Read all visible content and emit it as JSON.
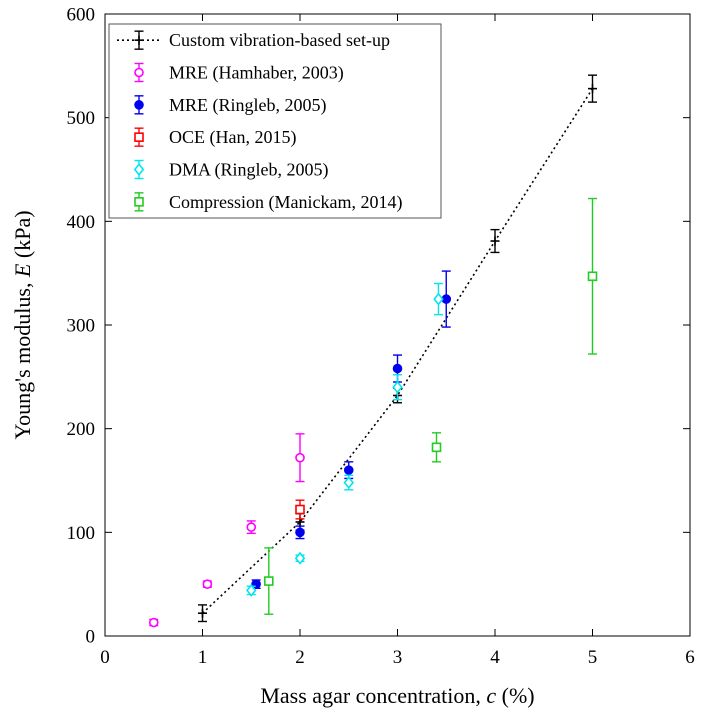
{
  "chart_data": {
    "type": "scatter",
    "title": "",
    "xlabel": "Mass agar concentration, c (%)",
    "ylabel": "Young's modulus, E (kPa)",
    "xlabel_segments": [
      {
        "text": "Mass agar concentration, ",
        "italic": false
      },
      {
        "text": "c",
        "italic": true
      },
      {
        "text": " (%)",
        "italic": false
      }
    ],
    "ylabel_segments": [
      {
        "text": "Young's modulus, ",
        "italic": false
      },
      {
        "text": "E",
        "italic": true
      },
      {
        "text": " (kPa)",
        "italic": false
      }
    ],
    "xlim": [
      0,
      6
    ],
    "ylim": [
      0,
      600
    ],
    "xticks": [
      0,
      1,
      2,
      3,
      4,
      5,
      6
    ],
    "yticks": [
      0,
      100,
      200,
      300,
      400,
      500,
      600
    ],
    "grid": false,
    "legend_position": "top-left",
    "series": [
      {
        "name": "Custom vibration-based set-up",
        "color": "#000000",
        "marker": "plus",
        "line": "dotted",
        "points": [
          {
            "x": 1.0,
            "y": 22,
            "err": 8
          },
          {
            "x": 2.0,
            "y": 110,
            "err": 8
          },
          {
            "x": 3.0,
            "y": 232,
            "err": 7
          },
          {
            "x": 4.0,
            "y": 381,
            "err": 11
          },
          {
            "x": 5.0,
            "y": 528,
            "err": 13
          }
        ]
      },
      {
        "name": "MRE (Hamhaber, 2003)",
        "color": "#ff00ff",
        "marker": "circle-open",
        "line": "none",
        "points": [
          {
            "x": 0.5,
            "y": 13,
            "err": 3
          },
          {
            "x": 1.05,
            "y": 50,
            "err": 3
          },
          {
            "x": 1.5,
            "y": 105,
            "err": 6
          },
          {
            "x": 2.0,
            "y": 172,
            "err": 23
          }
        ]
      },
      {
        "name": "MRE (Ringleb, 2005)",
        "color": "#0000ee",
        "marker": "circle-filled",
        "line": "none",
        "points": [
          {
            "x": 1.55,
            "y": 50,
            "err": 4
          },
          {
            "x": 2.0,
            "y": 100,
            "err": 6
          },
          {
            "x": 2.5,
            "y": 160,
            "err": 8
          },
          {
            "x": 3.0,
            "y": 258,
            "err": 13
          },
          {
            "x": 3.5,
            "y": 325,
            "err": 27
          }
        ]
      },
      {
        "name": "OCE (Han, 2015)",
        "color": "#ff0000",
        "marker": "square-open",
        "line": "none",
        "points": [
          {
            "x": 2.0,
            "y": 122,
            "err": 9
          }
        ]
      },
      {
        "name": "DMA (Ringleb, 2005)",
        "color": "#00e5ee",
        "marker": "diamond-open",
        "line": "none",
        "points": [
          {
            "x": 1.5,
            "y": 44,
            "err": 4
          },
          {
            "x": 2.0,
            "y": 75,
            "err": 3
          },
          {
            "x": 2.5,
            "y": 148,
            "err": 7
          },
          {
            "x": 3.0,
            "y": 240,
            "err": 12
          },
          {
            "x": 3.42,
            "y": 325,
            "err": 15
          }
        ]
      },
      {
        "name": "Compression (Manickam, 2014)",
        "color": "#22cc22",
        "marker": "square-open",
        "line": "none",
        "points": [
          {
            "x": 1.68,
            "y": 53,
            "err": 32
          },
          {
            "x": 3.4,
            "y": 182,
            "err": 14
          },
          {
            "x": 5.0,
            "y": 347,
            "err": 75
          }
        ]
      }
    ]
  }
}
